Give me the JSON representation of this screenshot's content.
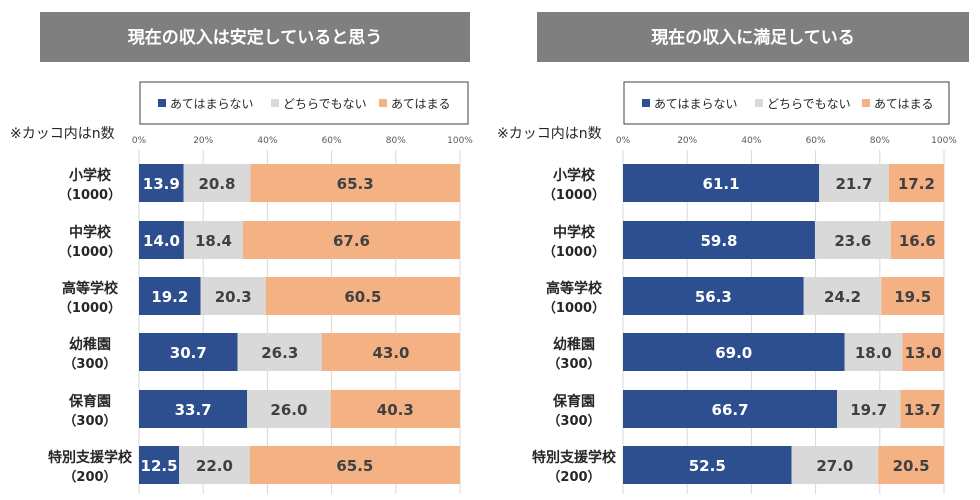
{
  "chart_data": [
    {
      "type": "bar",
      "title": "現在の収入は安定していると思う",
      "note": "※カッコ内はn数",
      "categories": [
        "小学校",
        "中学校",
        "高等学校",
        "幼稚園",
        "保育園",
        "特別支援学校"
      ],
      "category_n": [
        "（1000）",
        "（1000）",
        "（1000）",
        "（300）",
        "（300）",
        "（200）"
      ],
      "series": [
        {
          "name": "あてはまらない",
          "values": [
            13.9,
            14.0,
            19.2,
            30.7,
            33.7,
            12.5
          ]
        },
        {
          "name": "どちらでもない",
          "values": [
            20.8,
            18.4,
            20.3,
            26.3,
            26.0,
            22.0
          ]
        },
        {
          "name": "あてはまる",
          "values": [
            65.3,
            67.6,
            60.5,
            43.0,
            40.3,
            65.5
          ]
        }
      ],
      "xlim": [
        0,
        100
      ],
      "x_ticks": [
        "0%",
        "20%",
        "40%",
        "60%",
        "80%",
        "100%"
      ],
      "legend_position": "top",
      "grid": true
    },
    {
      "type": "bar",
      "title": "現在の収入に満足している",
      "note": "※カッコ内はn数",
      "categories": [
        "小学校",
        "中学校",
        "高等学校",
        "幼稚園",
        "保育園",
        "特別支援学校"
      ],
      "category_n": [
        "（1000）",
        "（1000）",
        "（1000）",
        "（300）",
        "（300）",
        "（200）"
      ],
      "series": [
        {
          "name": "あてはまらない",
          "values": [
            61.1,
            59.8,
            56.3,
            69.0,
            66.7,
            52.5
          ]
        },
        {
          "name": "どちらでもない",
          "values": [
            21.7,
            23.6,
            24.2,
            18.0,
            19.7,
            27.0
          ]
        },
        {
          "name": "あてはまる",
          "values": [
            17.2,
            16.6,
            19.5,
            13.0,
            13.7,
            20.5
          ]
        }
      ],
      "xlim": [
        0,
        100
      ],
      "x_ticks": [
        "0%",
        "20%",
        "40%",
        "60%",
        "80%",
        "100%"
      ],
      "legend_position": "top",
      "grid": true
    }
  ],
  "colors": {
    "not_apply": "#2e4f8f",
    "neutral": "#d9d9d9",
    "apply": "#f4b183",
    "title_bg": "#7f7f7f",
    "title_text": "#ffffff"
  }
}
